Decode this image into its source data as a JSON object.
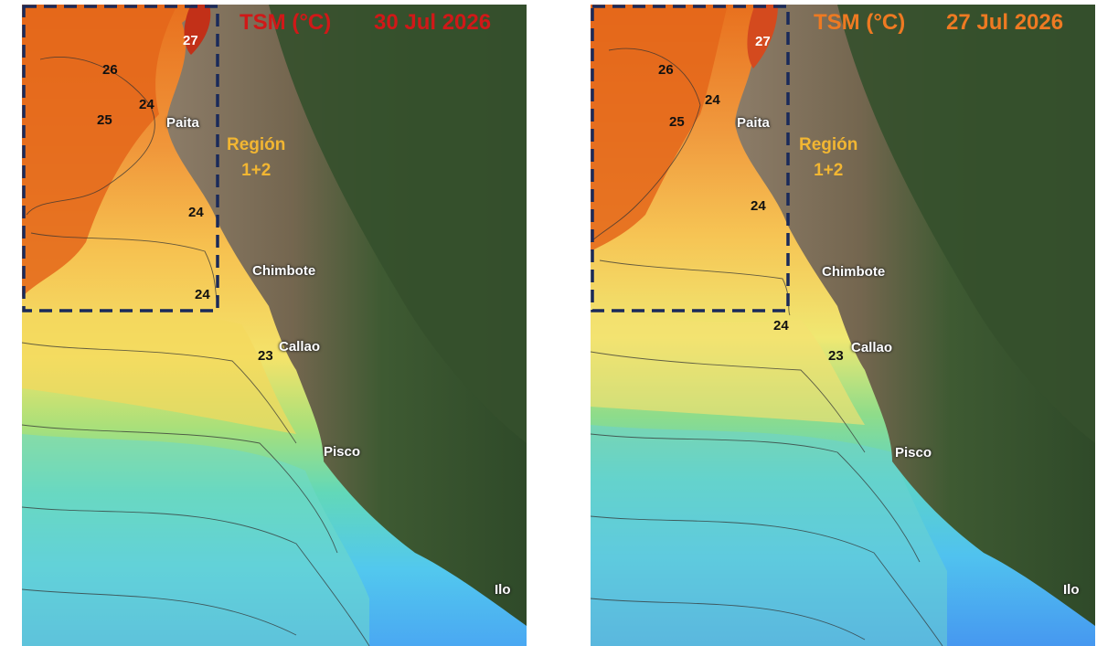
{
  "colors": {
    "header_left": "#d01818",
    "header_right": "#ee7a22",
    "region_label": "#f2b632",
    "box_outline": "#1a2a5a",
    "land_forest": "#35502c",
    "land_mountain": "#8a7a66"
  },
  "panels": [
    {
      "variable": "TSM (°C)",
      "date": "30 Jul 2026",
      "region": {
        "line1": "Región",
        "line2": "1+2"
      },
      "cities": {
        "paita": "Paita",
        "chimbote": "Chimbote",
        "callao": "Callao",
        "pisco": "Pisco",
        "ilo": "Ilo"
      },
      "isotherms": {
        "v27": "27",
        "v26": "26",
        "v25": "25",
        "v24a": "24",
        "v24b": "24",
        "v24c": "24",
        "v23": "23"
      }
    },
    {
      "variable": "TSM (°C)",
      "date": "27 Jul 2026",
      "region": {
        "line1": "Región",
        "line2": "1+2"
      },
      "cities": {
        "paita": "Paita",
        "chimbote": "Chimbote",
        "callao": "Callao",
        "pisco": "Pisco",
        "ilo": "Ilo"
      },
      "isotherms": {
        "v27": "27",
        "v26": "26",
        "v25": "25",
        "v24a": "24",
        "v24b": "24",
        "v24c": "24",
        "v23": "23"
      }
    }
  ]
}
